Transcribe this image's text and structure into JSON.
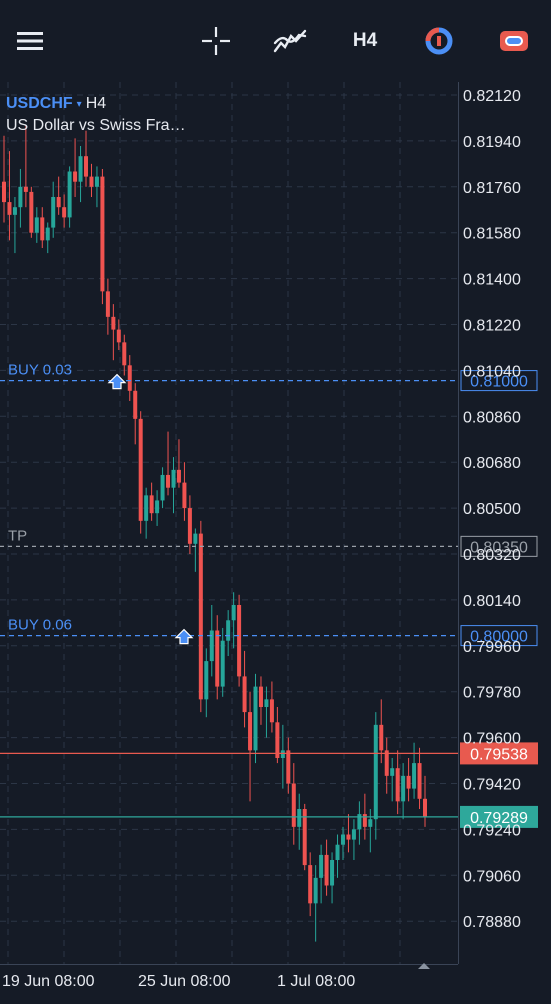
{
  "toolbar": {
    "menu_icon": "hamburger-icon",
    "crosshair_icon": "crosshair-icon",
    "indicators_icon": "indicators-icon",
    "timeframe": "H4",
    "timer_icon": "timer-icon",
    "trade_icon": "trade-icon"
  },
  "symbol": {
    "name": "USDCHF",
    "caret": "▾",
    "timeframe": "H4",
    "description": "US Dollar vs Swiss Fra…"
  },
  "price_axis": {
    "ticks": [
      "0.82120",
      "0.81940",
      "0.81760",
      "0.81580",
      "0.81400",
      "0.81220",
      "0.81040",
      "0.80860",
      "0.80680",
      "0.80500",
      "0.80320",
      "0.80140",
      "0.79960",
      "0.79780",
      "0.79600",
      "0.79420",
      "0.79240",
      "0.79060",
      "0.78880"
    ]
  },
  "time_axis": {
    "labels": [
      "19 Jun 08:00",
      "25 Jun 08:00",
      "1 Jul 08:00"
    ]
  },
  "levels": {
    "buy1": {
      "label": "BUY 0.03",
      "price": "0.81000",
      "value": 0.81,
      "color": "#4b8ff5"
    },
    "tp": {
      "label": "TP",
      "price": "0.80350",
      "value": 0.8035,
      "color": "#9aa0a8"
    },
    "buy2": {
      "label": "BUY 0.06",
      "price": "0.80000",
      "value": 0.8,
      "color": "#4b8ff5"
    },
    "ask": {
      "price": "0.79538",
      "value": 0.79538,
      "color": "#e85a4f"
    },
    "bid": {
      "price": "0.79289",
      "value": 0.79289,
      "color": "#2ea89b"
    }
  },
  "colors": {
    "background": "#151b26",
    "grid": "#2c3646",
    "bull": "#26a69a",
    "bear": "#ef5350",
    "text": "#e6e9ef",
    "accent": "#4b8ff5"
  },
  "chart_data": {
    "type": "candlestick",
    "symbol": "USDCHF",
    "timeframe": "H4",
    "ylim": [
      0.7874,
      0.8223
    ],
    "x_labels": [
      "19 Jun 08:00",
      "25 Jun 08:00",
      "1 Jul 08:00"
    ],
    "candles": [
      [
        0.8178,
        0.8196,
        0.8162,
        0.817
      ],
      [
        0.817,
        0.819,
        0.8155,
        0.8165
      ],
      [
        0.8165,
        0.8172,
        0.815,
        0.8168
      ],
      [
        0.8168,
        0.8183,
        0.816,
        0.8176
      ],
      [
        0.8176,
        0.82,
        0.8168,
        0.8174
      ],
      [
        0.8174,
        0.8176,
        0.8156,
        0.8158
      ],
      [
        0.8158,
        0.8168,
        0.8154,
        0.8164
      ],
      [
        0.8164,
        0.8168,
        0.8152,
        0.8155
      ],
      [
        0.8155,
        0.8162,
        0.815,
        0.816
      ],
      [
        0.816,
        0.8178,
        0.8156,
        0.8172
      ],
      [
        0.8172,
        0.818,
        0.8165,
        0.8168
      ],
      [
        0.8168,
        0.8173,
        0.816,
        0.8164
      ],
      [
        0.8164,
        0.8184,
        0.816,
        0.8182
      ],
      [
        0.8182,
        0.8195,
        0.8172,
        0.8178
      ],
      [
        0.8178,
        0.8192,
        0.817,
        0.8188
      ],
      [
        0.8188,
        0.8198,
        0.8176,
        0.818
      ],
      [
        0.818,
        0.8185,
        0.8172,
        0.8176
      ],
      [
        0.8176,
        0.8184,
        0.8168,
        0.818
      ],
      [
        0.818,
        0.8183,
        0.813,
        0.8135
      ],
      [
        0.8135,
        0.814,
        0.8118,
        0.8125
      ],
      [
        0.8125,
        0.813,
        0.8108,
        0.812
      ],
      [
        0.812,
        0.8124,
        0.8112,
        0.8115
      ],
      [
        0.8115,
        0.8118,
        0.8102,
        0.8106
      ],
      [
        0.8106,
        0.811,
        0.8092,
        0.8096
      ],
      [
        0.8096,
        0.8099,
        0.8075,
        0.8085
      ],
      [
        0.8085,
        0.8088,
        0.804,
        0.8045
      ],
      [
        0.8045,
        0.8058,
        0.8038,
        0.8055
      ],
      [
        0.8055,
        0.806,
        0.8045,
        0.8048
      ],
      [
        0.8048,
        0.8057,
        0.8043,
        0.8053
      ],
      [
        0.8053,
        0.8066,
        0.805,
        0.8063
      ],
      [
        0.8063,
        0.808,
        0.8055,
        0.8058
      ],
      [
        0.8058,
        0.807,
        0.8048,
        0.8065
      ],
      [
        0.8065,
        0.8077,
        0.8058,
        0.806
      ],
      [
        0.806,
        0.8068,
        0.8045,
        0.805
      ],
      [
        0.805,
        0.8055,
        0.8032,
        0.8036
      ],
      [
        0.8036,
        0.8042,
        0.8025,
        0.804
      ],
      [
        0.804,
        0.8045,
        0.797,
        0.7975
      ],
      [
        0.7975,
        0.7995,
        0.7968,
        0.799
      ],
      [
        0.799,
        0.8012,
        0.7984,
        0.8002
      ],
      [
        0.8002,
        0.8008,
        0.7975,
        0.798
      ],
      [
        0.798,
        0.8003,
        0.7976,
        0.7998
      ],
      [
        0.7998,
        0.801,
        0.7992,
        0.8006
      ],
      [
        0.8006,
        0.8017,
        0.7995,
        0.8012
      ],
      [
        0.8012,
        0.8016,
        0.798,
        0.7984
      ],
      [
        0.7984,
        0.7994,
        0.7964,
        0.797
      ],
      [
        0.797,
        0.7978,
        0.7935,
        0.7955
      ],
      [
        0.7955,
        0.7985,
        0.795,
        0.798
      ],
      [
        0.798,
        0.7984,
        0.7965,
        0.7972
      ],
      [
        0.7972,
        0.798,
        0.796,
        0.7975
      ],
      [
        0.7975,
        0.7982,
        0.7962,
        0.7966
      ],
      [
        0.7966,
        0.7972,
        0.795,
        0.7952
      ],
      [
        0.7952,
        0.7965,
        0.794,
        0.7955
      ],
      [
        0.7955,
        0.796,
        0.7938,
        0.7942
      ],
      [
        0.7942,
        0.795,
        0.7918,
        0.7925
      ],
      [
        0.7925,
        0.7938,
        0.7916,
        0.7932
      ],
      [
        0.7932,
        0.7934,
        0.7908,
        0.791
      ],
      [
        0.791,
        0.7915,
        0.789,
        0.7895
      ],
      [
        0.7895,
        0.791,
        0.788,
        0.7905
      ],
      [
        0.7905,
        0.7918,
        0.7895,
        0.7914
      ],
      [
        0.7914,
        0.792,
        0.7898,
        0.7902
      ],
      [
        0.7902,
        0.7915,
        0.7895,
        0.7912
      ],
      [
        0.7912,
        0.7922,
        0.7905,
        0.7918
      ],
      [
        0.7918,
        0.7925,
        0.7912,
        0.7922
      ],
      [
        0.7922,
        0.793,
        0.7915,
        0.792
      ],
      [
        0.792,
        0.7928,
        0.7912,
        0.7924
      ],
      [
        0.7924,
        0.7935,
        0.7918,
        0.793
      ],
      [
        0.793,
        0.7938,
        0.792,
        0.7925
      ],
      [
        0.7925,
        0.7932,
        0.7915,
        0.7928
      ],
      [
        0.7928,
        0.797,
        0.792,
        0.7965
      ],
      [
        0.7965,
        0.7975,
        0.795,
        0.7955
      ],
      [
        0.7955,
        0.796,
        0.7938,
        0.7945
      ],
      [
        0.7945,
        0.7952,
        0.7935,
        0.7948
      ],
      [
        0.7948,
        0.7955,
        0.793,
        0.7935
      ],
      [
        0.7935,
        0.795,
        0.7928,
        0.7945
      ],
      [
        0.7945,
        0.7952,
        0.7935,
        0.794
      ],
      [
        0.794,
        0.7958,
        0.7936,
        0.795
      ],
      [
        0.795,
        0.7956,
        0.7932,
        0.7936
      ],
      [
        0.7936,
        0.7945,
        0.7925,
        0.7929
      ]
    ]
  }
}
